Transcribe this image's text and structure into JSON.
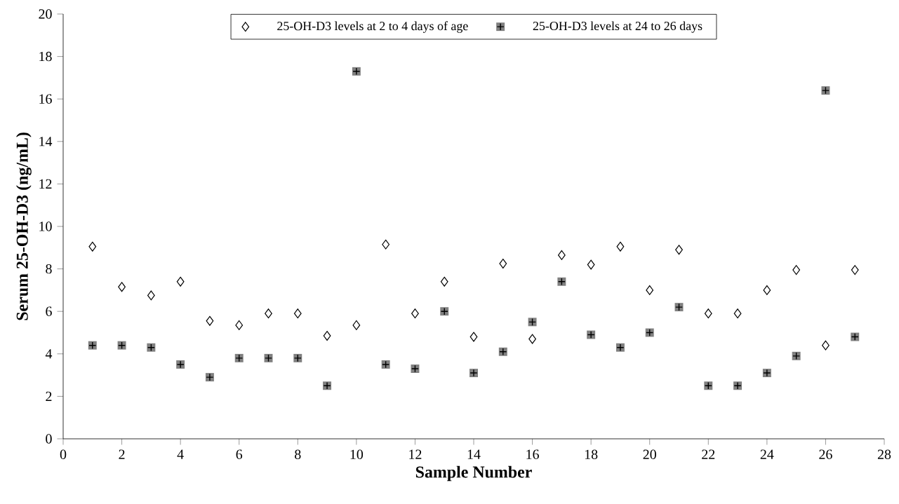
{
  "chart_data": {
    "type": "scatter",
    "xlabel": "Sample Number",
    "ylabel": "Serum 25-OH-D3 (ng/mL)",
    "xlim": [
      0,
      28
    ],
    "xticks": [
      0,
      2,
      4,
      6,
      8,
      10,
      12,
      14,
      16,
      18,
      20,
      22,
      24,
      26,
      28
    ],
    "ylim": [
      0,
      20
    ],
    "yticks": [
      0,
      2,
      4,
      6,
      8,
      10,
      12,
      14,
      16,
      18,
      20
    ],
    "x": [
      1,
      2,
      3,
      4,
      5,
      6,
      7,
      8,
      9,
      10,
      11,
      12,
      13,
      14,
      15,
      16,
      17,
      18,
      19,
      20,
      21,
      22,
      23,
      24,
      25,
      26,
      27
    ],
    "grid": false,
    "legend": "top",
    "series": [
      {
        "name": "25-OH-D3 levels at 2 to 4 days of age",
        "color": "#ffffff",
        "marker": "diamond",
        "values": [
          9.05,
          7.15,
          6.75,
          7.4,
          5.55,
          5.35,
          5.9,
          5.9,
          4.85,
          5.35,
          9.15,
          5.9,
          7.4,
          4.8,
          8.25,
          4.7,
          8.65,
          8.2,
          9.05,
          7.0,
          8.9,
          5.9,
          5.9,
          7.0,
          7.95,
          4.4,
          7.95
        ]
      },
      {
        "name": "25-OH-D3 levels at 24 to 26 days",
        "color": "#808080",
        "marker": "square",
        "values": [
          4.4,
          4.4,
          4.3,
          3.5,
          2.9,
          3.8,
          3.8,
          3.8,
          2.5,
          17.3,
          3.5,
          3.3,
          6.0,
          3.1,
          4.1,
          5.5,
          7.4,
          4.9,
          4.3,
          5.0,
          6.2,
          2.5,
          2.5,
          3.1,
          3.9,
          16.4,
          4.8
        ]
      }
    ]
  }
}
